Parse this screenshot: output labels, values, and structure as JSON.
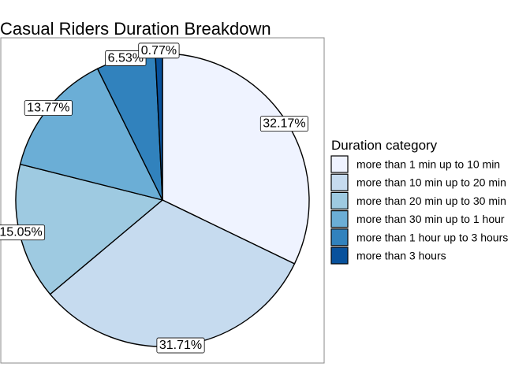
{
  "chart_data": {
    "type": "pie",
    "title": "Casual Riders Duration Breakdown",
    "legend_title": "Duration category",
    "legend_position": "right",
    "start_angle_deg": 0,
    "direction": "clockwise",
    "slices": [
      {
        "label": "more than 1 min up to 10 min",
        "value": 32.17,
        "display": "32.17%",
        "color": "#EFF3FF"
      },
      {
        "label": "more than 10 min up to 20 min",
        "value": 31.71,
        "display": "31.71%",
        "color": "#C6DBEF"
      },
      {
        "label": "more than 20 min up to 30 min",
        "value": 15.05,
        "display": "15.05%",
        "color": "#9ECAE1"
      },
      {
        "label": "more than 30 min up to 1 hour",
        "value": 13.77,
        "display": "13.77%",
        "color": "#6BAED6"
      },
      {
        "label": "more than 1 hour up to 3 hours",
        "value": 6.53,
        "display": "6.53%",
        "color": "#3182BD"
      },
      {
        "label": "more than 3 hours",
        "value": 0.77,
        "display": "0.77%",
        "color": "#08519C"
      }
    ]
  }
}
